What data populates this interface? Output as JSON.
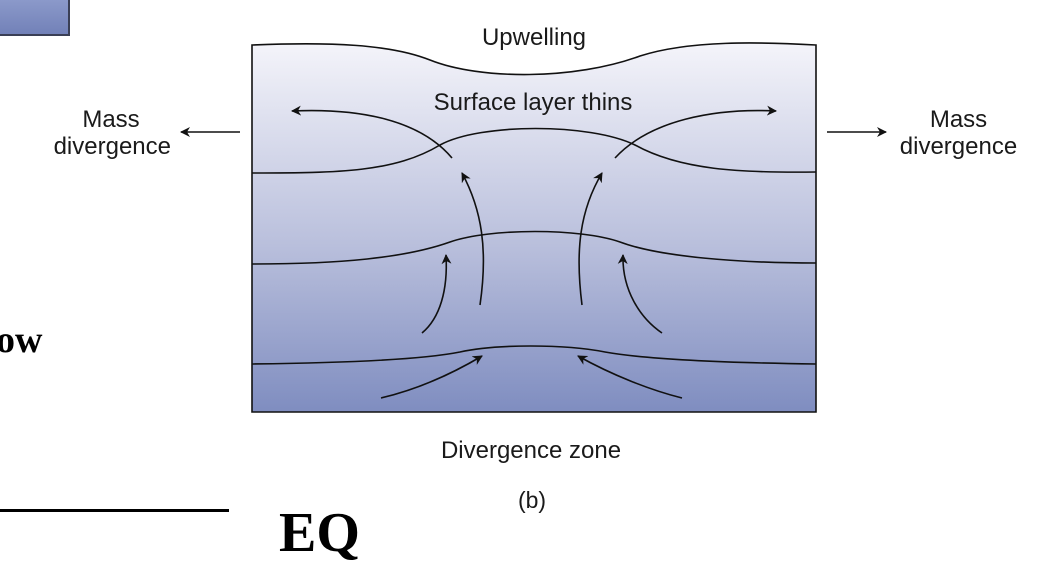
{
  "diagram": {
    "title": "Upwelling",
    "top_label": "Surface layer thins",
    "left_label_line1": "Mass",
    "left_label_line2": "divergence",
    "right_label_line1": "Mass",
    "right_label_line2": "divergence",
    "bottom_label": "Divergence zone",
    "panel_label": "(b)",
    "colors": {
      "top": "#f4f4fa",
      "middle": "#b9bfdc",
      "bottom": "#7f8dc0",
      "lines": "#111111"
    }
  },
  "background_fragments": {
    "partial_word": "ow",
    "equator_label": "EQ"
  }
}
